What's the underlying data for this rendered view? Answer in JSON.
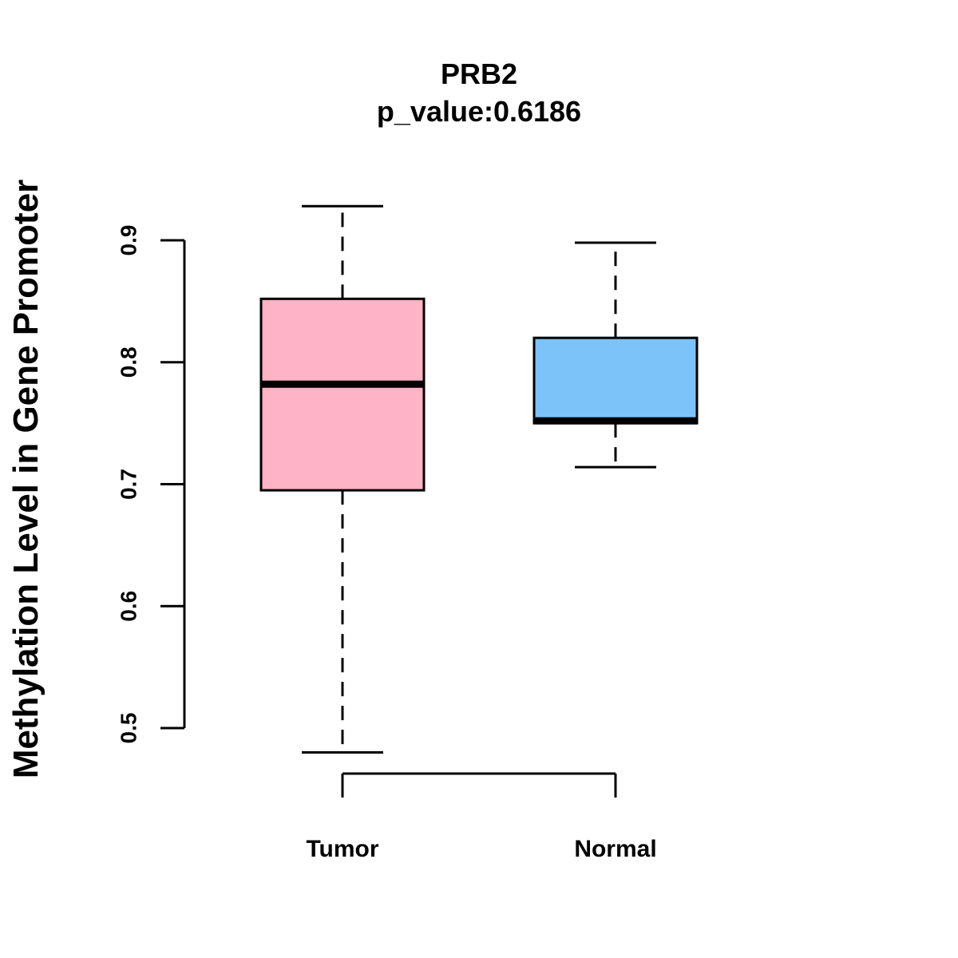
{
  "chart_data": {
    "type": "box",
    "title": "PRB2",
    "subtitle": "p_value:0.6186",
    "xlabel": "",
    "ylabel": "Methylation Level in Gene Promoter",
    "ylim": [
      0.5,
      0.9
    ],
    "yticks": [
      0.5,
      0.6,
      0.7,
      0.8,
      0.9
    ],
    "ytick_labels": [
      "0.5",
      "0.6",
      "0.7",
      "0.8",
      "0.9"
    ],
    "categories": [
      "Tumor",
      "Normal"
    ],
    "boxes": [
      {
        "name": "Tumor",
        "whisker_low": 0.48,
        "q1": 0.695,
        "median": 0.782,
        "q3": 0.852,
        "whisker_high": 0.928,
        "color": "#FFB3C6"
      },
      {
        "name": "Normal",
        "whisker_low": 0.714,
        "q1": 0.75,
        "median": 0.752,
        "q3": 0.82,
        "whisker_high": 0.898,
        "color": "#7BC3F9"
      }
    ],
    "grid": false,
    "legend": "none"
  }
}
